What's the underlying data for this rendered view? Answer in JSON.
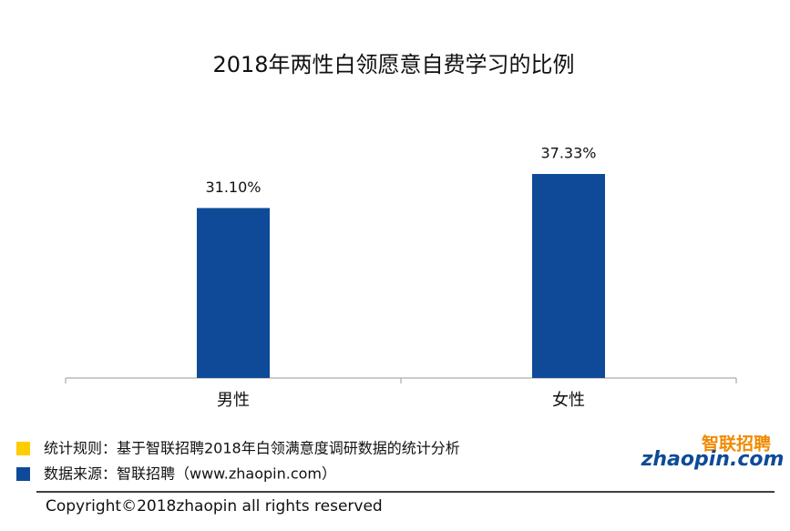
{
  "chart_data": {
    "type": "bar",
    "title": "2018年两性白领愿意自费学习的比例",
    "categories": [
      "男性",
      "女性"
    ],
    "values": [
      31.1,
      37.33
    ],
    "value_labels": [
      "31.10%",
      "37.33%"
    ],
    "color": "#0e4a97"
  },
  "footer": {
    "notes": [
      {
        "text": "统计规则：基于智联招聘2018年白领满意度调研数据的统计分析",
        "color": "#ffcc00"
      },
      {
        "text": "数据来源：智联招聘（www.zhaopin.com）",
        "color": "#0e4a97"
      }
    ],
    "copyright": "Copyright©2018zhaopin all rights reserved",
    "logo_cn": "智联招聘",
    "logo_en": "zhaopin.com"
  }
}
